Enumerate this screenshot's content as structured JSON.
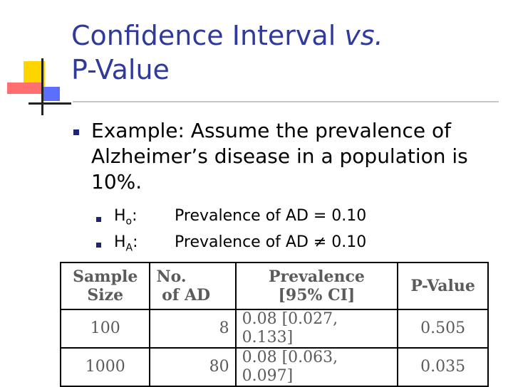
{
  "title": {
    "line1_main": "Confidence Interval ",
    "line1_italic": "vs.",
    "line2": "P-Value"
  },
  "example": "Example: Assume the prevalence of Alzheimer’s disease in a population is 10%.",
  "hypotheses": [
    {
      "label_main": "H",
      "label_sub": "o",
      "colon": ":",
      "text": "Prevalence of AD = 0.10"
    },
    {
      "label_main": "H",
      "label_sub": "A",
      "colon": ":",
      "text": "Prevalence of AD ≠ 0.10"
    }
  ],
  "table": {
    "headers": {
      "sample_size": [
        "Sample",
        "Size"
      ],
      "no_of_ad": [
        "No.",
        "of AD"
      ],
      "prevalence": [
        "Prevalence",
        "[95% CI]"
      ],
      "p_value": "P-Value"
    },
    "rows": [
      {
        "sample_size": "100",
        "no_of_ad": "8",
        "prevalence": "0.08 [0.027, 0.133]",
        "p_value": "0.505"
      },
      {
        "sample_size": "1000",
        "no_of_ad": "80",
        "prevalence": "0.08 [0.063, 0.097]",
        "p_value": "0.035"
      }
    ]
  }
}
